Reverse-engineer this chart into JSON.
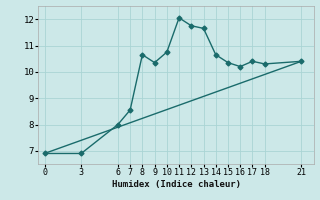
{
  "xlabel": "Humidex (Indice chaleur)",
  "bg_color": "#cce8e8",
  "grid_color": "#aad4d4",
  "line_color": "#1a6b6b",
  "line1_x": [
    0,
    3,
    6,
    7,
    8,
    9,
    10,
    11,
    12,
    13,
    14,
    15,
    16,
    17,
    18,
    21
  ],
  "line1_y": [
    6.9,
    6.9,
    8.0,
    8.55,
    10.65,
    10.35,
    10.75,
    12.05,
    11.75,
    11.65,
    10.65,
    10.35,
    10.2,
    10.4,
    10.3,
    10.4
  ],
  "line2_x": [
    0,
    21
  ],
  "line2_y": [
    6.9,
    10.4
  ],
  "xlim": [
    -0.5,
    22
  ],
  "ylim": [
    6.5,
    12.5
  ],
  "yticks": [
    7,
    8,
    9,
    10,
    11,
    12
  ],
  "xticks": [
    0,
    3,
    6,
    7,
    8,
    9,
    10,
    11,
    12,
    13,
    14,
    15,
    16,
    17,
    18,
    21
  ],
  "marker": "D",
  "markersize": 2.5,
  "linewidth": 1.0,
  "tick_fontsize": 6.0,
  "xlabel_fontsize": 6.5
}
